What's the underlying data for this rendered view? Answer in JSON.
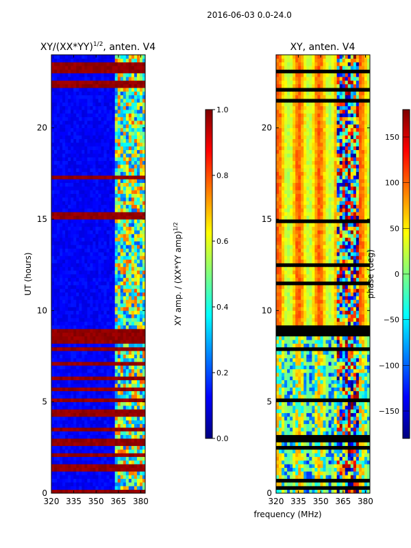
{
  "suptitle": "2016-06-03 0.0-24.0",
  "colors": {
    "jet": [
      "#00007f",
      "#0000ff",
      "#007fff",
      "#00ffff",
      "#7fff7f",
      "#ffff00",
      "#ff7f00",
      "#ff0000",
      "#7f0000"
    ]
  },
  "chart_data": [
    {
      "type": "heatmap",
      "title_main": "XY/(XX*YY)",
      "title_sup": "1/2",
      "title_tail": ", anten. V4",
      "ylabel": "UT (hours)",
      "xlabel": "",
      "xlim": [
        320,
        383
      ],
      "ylim": [
        0,
        24
      ],
      "xticks": [
        320,
        335,
        350,
        365,
        380
      ],
      "yticks": [
        0,
        5,
        10,
        15,
        20
      ],
      "colorbar": {
        "label": "XY amp. / (XX*YY amp)",
        "label_sup": "1/2",
        "range": [
          0,
          1
        ],
        "ticks": [
          "0.0",
          "0.2",
          "0.4",
          "0.6",
          "0.8",
          "1.0"
        ]
      },
      "description_of_pattern": {
        "background_value": 0.12,
        "saturated_hour_bands": [
          [
            0.0,
            0.3
          ],
          [
            1.2,
            1.5
          ],
          [
            2.0,
            2.2
          ],
          [
            2.7,
            2.9
          ],
          [
            3.4,
            3.6
          ],
          [
            4.3,
            4.5
          ],
          [
            5.0,
            5.2
          ],
          [
            5.6,
            5.8
          ],
          [
            6.2,
            6.4
          ],
          [
            6.9,
            7.2
          ],
          [
            7.8,
            8.1
          ],
          [
            8.3,
            8.9
          ],
          [
            15.1,
            15.3
          ],
          [
            17.2,
            17.4
          ],
          [
            22.1,
            22.6
          ],
          [
            23.0,
            23.5
          ]
        ],
        "active_freq_range": [
          362,
          383
        ]
      }
    },
    {
      "type": "heatmap",
      "title": "XY, anten. V4",
      "xlabel": "frequency (MHz)",
      "xlim": [
        320,
        383
      ],
      "ylim": [
        0,
        24
      ],
      "xticks": [
        320,
        335,
        350,
        365,
        380
      ],
      "yticks": [
        0,
        5,
        10,
        15,
        20
      ],
      "colorbar": {
        "label": "phase (deg)",
        "range": [
          -180,
          180
        ],
        "ticks": [
          "−150",
          "−100",
          "−50",
          "0",
          "50",
          "100",
          "150"
        ]
      },
      "description_of_pattern": {
        "mean_phase": 60,
        "low_phase_hour_range": [
          0,
          8.7
        ],
        "dark_gap_hour_range": [
          8.7,
          9.1
        ],
        "noisy_freq_range": [
          360,
          376
        ]
      }
    }
  ]
}
